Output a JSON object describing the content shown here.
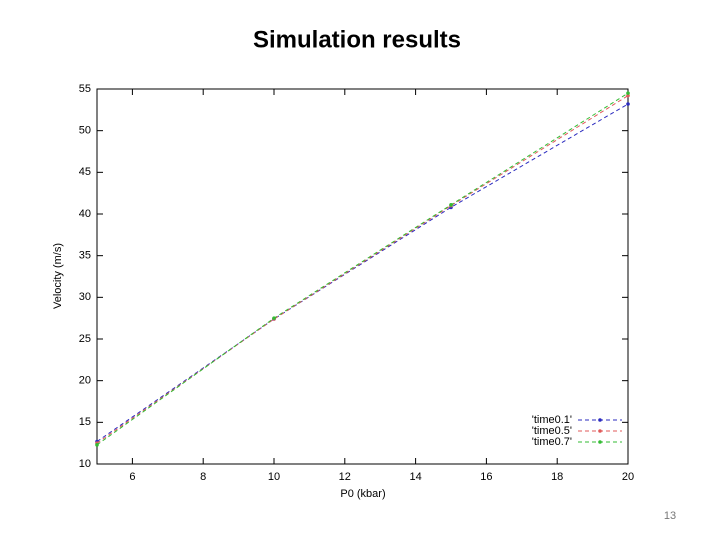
{
  "chart_data": {
    "type": "line",
    "title": "Simulation results",
    "x_label": "P0 (kbar)",
    "y_label": "Velocity (m/s)",
    "x": [
      5,
      10,
      15,
      20
    ],
    "series": [
      {
        "name": "'time0.1'",
        "color": "#2b2bbf",
        "values": [
          12.7,
          27.4,
          40.8,
          53.2
        ]
      },
      {
        "name": "'time0.5'",
        "color": "#e05a5a",
        "values": [
          12.5,
          27.4,
          41.0,
          54.2
        ]
      },
      {
        "name": "'time0.7'",
        "color": "#33bb33",
        "values": [
          12.3,
          27.5,
          41.1,
          54.5
        ]
      }
    ],
    "xlim": [
      5,
      20
    ],
    "xticks": [
      6,
      8,
      10,
      12,
      14,
      16,
      18,
      20
    ],
    "ylim": [
      10,
      55
    ],
    "yticks": [
      10,
      15,
      20,
      25,
      30,
      35,
      40,
      45,
      50,
      55
    ],
    "grid": false,
    "legend": "lower right"
  },
  "page_number": "13"
}
